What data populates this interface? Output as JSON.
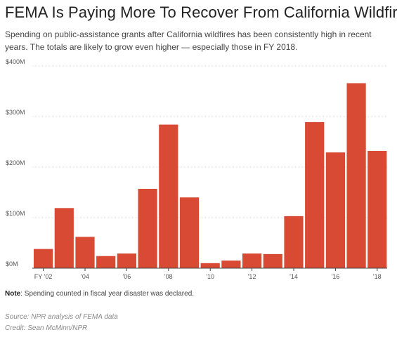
{
  "header": {
    "title": "FEMA Is Paying More To Recover From California Wildfires",
    "subtitle": "Spending on public-assistance grants after California wildfires has been consistently high in recent years. The totals are likely to grow even higher — especially those in FY 2018."
  },
  "footer": {
    "note_label": "Note",
    "note_text": ": Spending counted in fiscal year disaster was declared.",
    "source": "Source: NPR analysis of FEMA data",
    "credit": "Credit: Sean McMinn/NPR"
  },
  "colors": {
    "bar": "#d84a33",
    "grid": "#e3e3e3",
    "axis": "#444444"
  },
  "chart_data": {
    "type": "bar",
    "categories": [
      "FY '02",
      "'03",
      "'04",
      "'05",
      "'06",
      "'07",
      "'08",
      "'09",
      "'10",
      "'11",
      "'12",
      "'13",
      "'14",
      "'15",
      "'16",
      "'17",
      "'18"
    ],
    "tick_labels": [
      {
        "category": "FY '02",
        "label": "FY '02"
      },
      {
        "category": "'04",
        "label": "'04"
      },
      {
        "category": "'06",
        "label": "'06"
      },
      {
        "category": "'08",
        "label": "'08"
      },
      {
        "category": "'10",
        "label": "'10"
      },
      {
        "category": "'12",
        "label": "'12"
      },
      {
        "category": "'14",
        "label": "'14"
      },
      {
        "category": "'16",
        "label": "'16"
      },
      {
        "category": "'18",
        "label": "'18"
      }
    ],
    "values": [
      38,
      119,
      62,
      24,
      29,
      157,
      284,
      140,
      10,
      15,
      29,
      28,
      103,
      289,
      229,
      366,
      232
    ],
    "unit": "$M",
    "ylim": [
      0,
      400
    ],
    "yticks": [
      0,
      100,
      200,
      300,
      400
    ],
    "ytick_labels": [
      "$0M",
      "$100M",
      "$200M",
      "$300M",
      "$400M"
    ],
    "grid": true,
    "legend": "none"
  }
}
